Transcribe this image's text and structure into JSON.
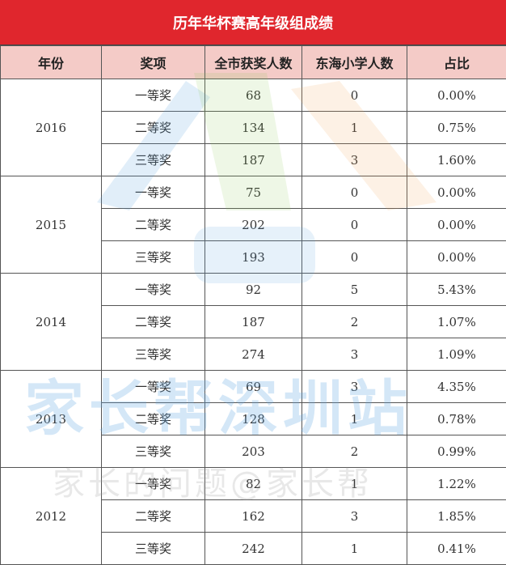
{
  "table": {
    "title": "历年华杯赛高年级组成绩",
    "header": [
      "年份",
      "奖项",
      "全市获奖人数",
      "东海小学人数",
      "占比"
    ],
    "groups": [
      {
        "year": 2016,
        "rows": [
          [
            "一等奖",
            68,
            0,
            "0.00%"
          ],
          [
            "二等奖",
            134,
            1,
            "0.75%"
          ],
          [
            "三等奖",
            187,
            3,
            "1.60%"
          ]
        ]
      },
      {
        "year": 2015,
        "rows": [
          [
            "一等奖",
            75,
            0,
            "0.00%"
          ],
          [
            "二等奖",
            202,
            0,
            "0.00%"
          ],
          [
            "三等奖",
            193,
            0,
            "0.00%"
          ]
        ]
      },
      {
        "year": 2014,
        "rows": [
          [
            "一等奖",
            92,
            5,
            "5.43%"
          ],
          [
            "二等奖",
            187,
            2,
            "1.07%"
          ],
          [
            "三等奖",
            274,
            3,
            "1.09%"
          ]
        ]
      },
      {
        "year": 2013,
        "rows": [
          [
            "一等奖",
            69,
            3,
            "4.35%"
          ],
          [
            "二等奖",
            128,
            1,
            "0.78%"
          ],
          [
            "三等奖",
            203,
            2,
            "0.99%"
          ]
        ]
      },
      {
        "year": 2012,
        "rows": [
          [
            "一等奖",
            82,
            1,
            "1.22%"
          ],
          [
            "二等奖",
            162,
            3,
            "1.85%"
          ],
          [
            "三等奖",
            242,
            1,
            "0.41%"
          ]
        ]
      }
    ]
  },
  "watermark": [
    "家长帮深圳站",
    "家长的问题@家长帮"
  ]
}
